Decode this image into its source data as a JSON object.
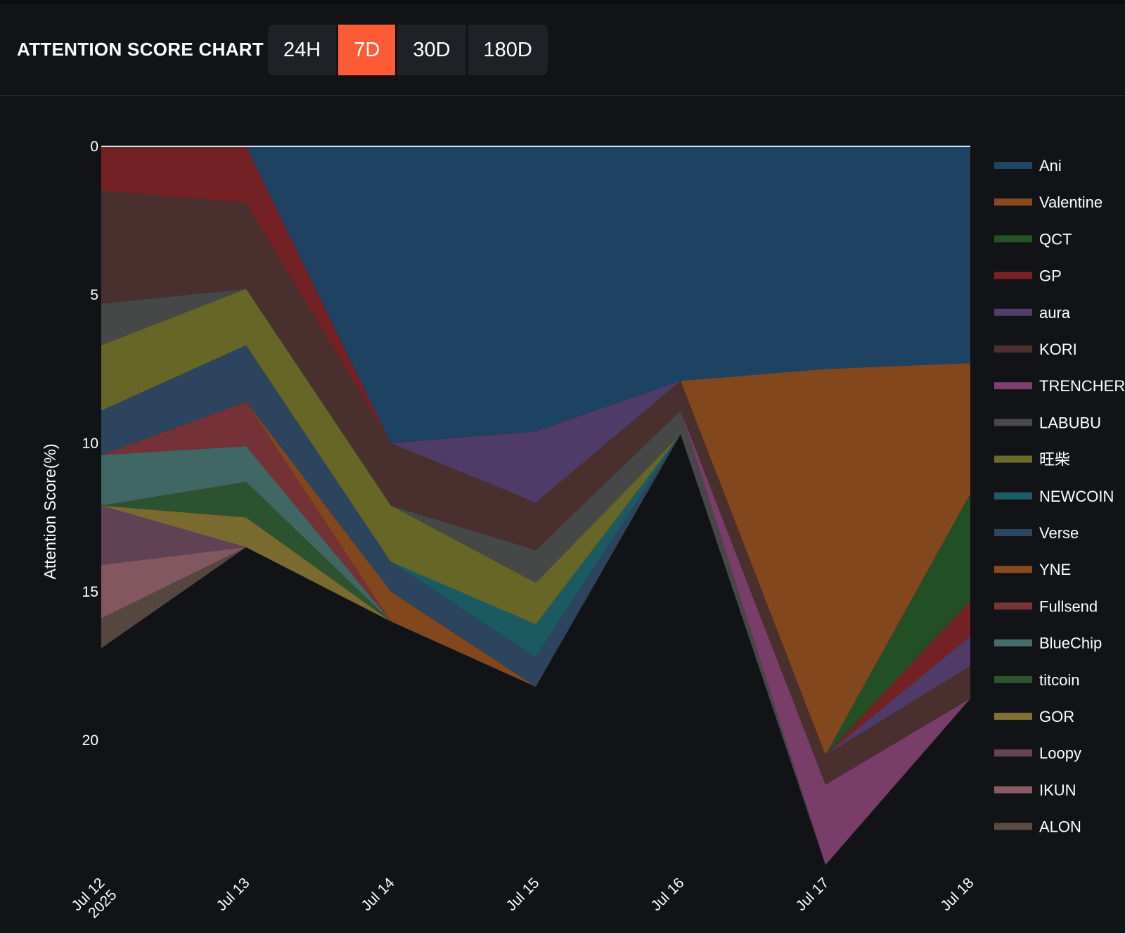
{
  "header": {
    "title": "ATTENTION SCORE CHART",
    "tabs": [
      {
        "label": "24H",
        "active": false
      },
      {
        "label": "7D",
        "active": true
      },
      {
        "label": "30D",
        "active": false
      },
      {
        "label": "180D",
        "active": false
      }
    ]
  },
  "colors": {
    "background": "#121317",
    "accent": "#ff5a36",
    "tab": "#202127"
  },
  "chart_data": {
    "type": "area",
    "stacked": true,
    "ylabel": "Attention Score(%)",
    "y_reversed": true,
    "ylim": [
      0,
      24
    ],
    "y_ticks": [
      0,
      5,
      10,
      15,
      20
    ],
    "x": [
      "Jul 12\n2025",
      "Jul 13",
      "Jul 14",
      "Jul 15",
      "Jul 16",
      "Jul 17",
      "Jul 18"
    ],
    "legend_position": "right",
    "series": [
      {
        "name": "Ani",
        "color": "#1f4566",
        "values": [
          0,
          0,
          10,
          9.6,
          7.9,
          7.5,
          7.3
        ]
      },
      {
        "name": "Valentine",
        "color": "#8a4a1e",
        "values": [
          0,
          0,
          0,
          0,
          0,
          13.0,
          4.4
        ]
      },
      {
        "name": "QCT",
        "color": "#245224",
        "values": [
          0,
          0,
          0,
          0,
          0,
          0,
          3.6
        ]
      },
      {
        "name": "GP",
        "color": "#7a2226",
        "values": [
          1.5,
          1.9,
          0,
          0,
          0,
          0,
          1.2
        ]
      },
      {
        "name": "aura",
        "color": "#533d6b",
        "values": [
          0,
          0,
          0,
          2.4,
          0,
          0,
          1.0
        ]
      },
      {
        "name": "KORI",
        "color": "#4d3130",
        "values": [
          3.8,
          2.9,
          2.1,
          1.6,
          1.0,
          1.0,
          1.1
        ]
      },
      {
        "name": "TRENCHER",
        "color": "#7e3f6e",
        "values": [
          0,
          0,
          0,
          0,
          0,
          2.7,
          0
        ]
      },
      {
        "name": "LABUBU",
        "color": "#4a4a4a",
        "values": [
          1.4,
          0,
          0,
          1.1,
          0.8,
          0,
          0
        ]
      },
      {
        "name": "旺柴",
        "color": "#6b6a27",
        "values": [
          2.2,
          1.9,
          1.9,
          1.4,
          0,
          0,
          0
        ]
      },
      {
        "name": "NEWCOIN",
        "color": "#1d5e66",
        "values": [
          0,
          0,
          0,
          1.1,
          0,
          0,
          0
        ]
      },
      {
        "name": "Verse",
        "color": "#2e4761",
        "values": [
          1.5,
          1.9,
          1.0,
          1.0,
          0,
          0,
          0
        ]
      },
      {
        "name": "YNE",
        "color": "#8a4a1e",
        "values": [
          0,
          0,
          1.0,
          0,
          0,
          0,
          0
        ]
      },
      {
        "name": "Fullsend",
        "color": "#7a3438",
        "values": [
          0,
          1.5,
          0,
          0,
          0,
          0,
          0
        ]
      },
      {
        "name": "BlueChip",
        "color": "#456b69",
        "values": [
          1.7,
          1.2,
          0,
          0,
          0,
          0,
          0
        ]
      },
      {
        "name": "titcoin",
        "color": "#2f5530",
        "values": [
          0,
          1.2,
          0,
          0,
          0,
          0,
          0
        ]
      },
      {
        "name": "GOR",
        "color": "#807032",
        "values": [
          0,
          1.0,
          0,
          0,
          0,
          0,
          0
        ]
      },
      {
        "name": "Loopy",
        "color": "#664457",
        "values": [
          2.0,
          0,
          0,
          0,
          0,
          0,
          0
        ]
      },
      {
        "name": "IKUN",
        "color": "#8a5b64",
        "values": [
          1.8,
          0,
          0,
          0,
          0,
          0,
          0
        ]
      },
      {
        "name": "ALON",
        "color": "#5a4a42",
        "values": [
          1.0,
          0,
          0,
          0,
          0,
          0,
          0
        ]
      }
    ]
  }
}
